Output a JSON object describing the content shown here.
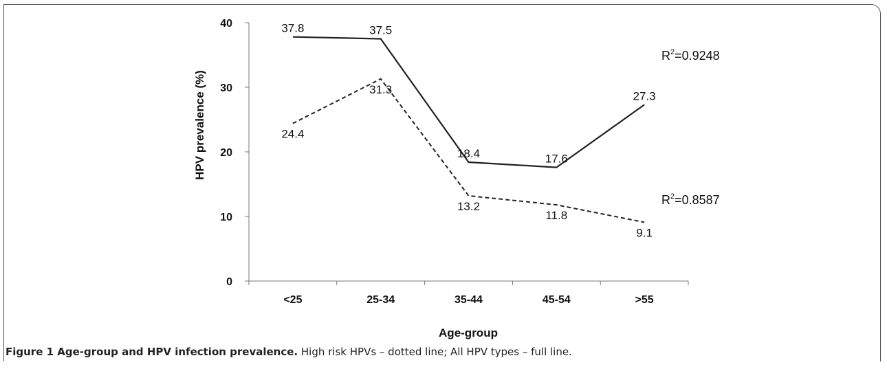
{
  "chart_data": {
    "type": "line",
    "categories": [
      "<25",
      "25-34",
      "35-44",
      "45-54",
      ">55"
    ],
    "series": [
      {
        "style": "solid",
        "values": [
          37.8,
          37.5,
          18.4,
          17.6,
          27.3
        ],
        "labels": [
          "37.8",
          "37.5",
          "18.4",
          "17.6",
          "27.3"
        ]
      },
      {
        "style": "dashed",
        "values": [
          24.4,
          31.3,
          13.2,
          11.8,
          9.1
        ],
        "labels": [
          "24.4",
          "31.3",
          "13.2",
          "11.8",
          "9.1"
        ]
      }
    ],
    "ylim": [
      0,
      40
    ],
    "yticks": [
      "0",
      "10",
      "20",
      "30",
      "40"
    ],
    "ylabel": "HPV prevalence (%)",
    "xlabel": "Age-group",
    "annotations": [
      {
        "prefix": "R",
        "sup": "2",
        "text": "=0.9248"
      },
      {
        "prefix": "R",
        "sup": "2",
        "text": "=0.8587"
      }
    ],
    "grid": false,
    "legend": "none"
  },
  "caption": {
    "title": "Figure 1 Age-group and HPV infection prevalence.",
    "text": " High risk HPVs – dotted line; All HPV types – full line."
  }
}
